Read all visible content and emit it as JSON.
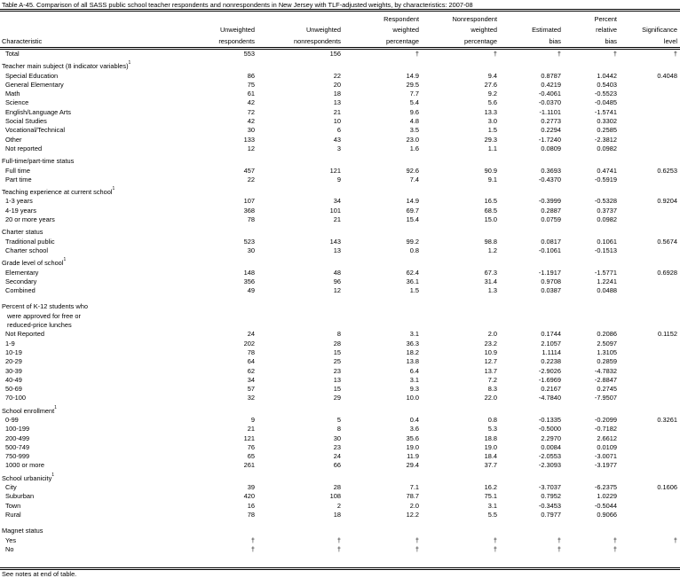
{
  "title": "Table A-45. Comparison of all SASS public school teacher respondents and nonrespondents in New Jersey with TLF-adjusted weights, by characteristics: 2007-08",
  "headers": {
    "characteristic": "Characteristic",
    "cols": [
      [
        "",
        "Unweighted",
        "respondents"
      ],
      [
        "",
        "Unweighted",
        "nonrespondents"
      ],
      [
        "Respondent",
        "weighted",
        "percentage"
      ],
      [
        "Nonrespondent",
        "weighted",
        "percentage"
      ],
      [
        "",
        "Estimated",
        "bias"
      ],
      [
        "Percent",
        "relative",
        "bias"
      ],
      [
        "",
        "Significance",
        "level"
      ]
    ]
  },
  "rows": [
    {
      "type": "data",
      "label": "Total",
      "values": [
        "553",
        "156",
        "†",
        "†",
        "†",
        "†",
        "†"
      ]
    },
    {
      "type": "group",
      "label": "Teacher main subject (8 indicator variables)",
      "sup": "1"
    },
    {
      "type": "data",
      "label": "Special Education",
      "values": [
        "86",
        "22",
        "14.9",
        "9.4",
        "0.8787",
        "1.0442",
        "0.4048"
      ]
    },
    {
      "type": "data",
      "label": "General Elementary",
      "values": [
        "75",
        "20",
        "29.5",
        "27.6",
        "0.4219",
        "0.5403",
        ""
      ]
    },
    {
      "type": "data",
      "label": "Math",
      "values": [
        "61",
        "18",
        "7.7",
        "9.2",
        "-0.4061",
        "-0.5523",
        ""
      ]
    },
    {
      "type": "data",
      "label": "Science",
      "values": [
        "42",
        "13",
        "5.4",
        "5.6",
        "-0.0370",
        "-0.0485",
        ""
      ]
    },
    {
      "type": "data",
      "label": "English/Language Arts",
      "values": [
        "72",
        "21",
        "9.6",
        "13.3",
        "-1.1101",
        "-1.5741",
        ""
      ]
    },
    {
      "type": "data",
      "label": "Social Studies",
      "values": [
        "42",
        "10",
        "4.8",
        "3.0",
        "0.2773",
        "0.3302",
        ""
      ]
    },
    {
      "type": "data",
      "label": "Vocational/Technical",
      "values": [
        "30",
        "6",
        "3.5",
        "1.5",
        "0.2294",
        "0.2585",
        ""
      ]
    },
    {
      "type": "data",
      "label": "Other",
      "values": [
        "133",
        "43",
        "23.0",
        "29.3",
        "-1.7240",
        "-2.3812",
        ""
      ]
    },
    {
      "type": "data",
      "label": "Not reported",
      "values": [
        "12",
        "3",
        "1.6",
        "1.1",
        "0.0809",
        "0.0982",
        ""
      ]
    },
    {
      "type": "group",
      "label": "Full-time/part-time status"
    },
    {
      "type": "data",
      "label": "Full time",
      "values": [
        "457",
        "121",
        "92.6",
        "90.9",
        "0.3693",
        "0.4741",
        "0.6253"
      ]
    },
    {
      "type": "data",
      "label": "Part time",
      "values": [
        "22",
        "9",
        "7.4",
        "9.1",
        "-0.4370",
        "-0.5919",
        ""
      ]
    },
    {
      "type": "group",
      "label": "Teaching experience at current school",
      "sup": "1"
    },
    {
      "type": "data",
      "label": "1-3 years",
      "values": [
        "107",
        "34",
        "14.9",
        "16.5",
        "-0.3999",
        "-0.5328",
        "0.9204"
      ]
    },
    {
      "type": "data",
      "label": "4-19 years",
      "values": [
        "368",
        "101",
        "69.7",
        "68.5",
        "0.2887",
        "0.3737",
        ""
      ]
    },
    {
      "type": "data",
      "label": "20 or more years",
      "values": [
        "78",
        "21",
        "15.4",
        "15.0",
        "0.0759",
        "0.0982",
        ""
      ]
    },
    {
      "type": "group",
      "label": "Charter status"
    },
    {
      "type": "data",
      "label": "Traditional public",
      "values": [
        "523",
        "143",
        "99.2",
        "98.8",
        "0.0817",
        "0.1061",
        "0.5674"
      ]
    },
    {
      "type": "data",
      "label": "Charter school",
      "values": [
        "30",
        "13",
        "0.8",
        "1.2",
        "-0.1061",
        "-0.1513",
        ""
      ]
    },
    {
      "type": "group",
      "label": "Grade level of school",
      "sup": "1"
    },
    {
      "type": "data",
      "label": "Elementary",
      "values": [
        "148",
        "48",
        "62.4",
        "67.3",
        "-1.1917",
        "-1.5771",
        "0.6928"
      ]
    },
    {
      "type": "data",
      "label": "Secondary",
      "values": [
        "356",
        "96",
        "36.1",
        "31.4",
        "0.9708",
        "1.2241",
        ""
      ]
    },
    {
      "type": "data",
      "label": "Combined",
      "values": [
        "49",
        "12",
        "1.5",
        "1.3",
        "0.0387",
        "0.0488",
        ""
      ]
    },
    {
      "type": "blank"
    },
    {
      "type": "group",
      "label": "Percent of K-12 students who"
    },
    {
      "type": "cont",
      "label": "were approved for free or"
    },
    {
      "type": "cont",
      "label": "reduced-price lunches"
    },
    {
      "type": "data",
      "label": "Not Reported",
      "values": [
        "24",
        "8",
        "3.1",
        "2.0",
        "0.1744",
        "0.2086",
        "0.1152"
      ]
    },
    {
      "type": "data",
      "label": "1-9",
      "values": [
        "202",
        "28",
        "36.3",
        "23.2",
        "2.1057",
        "2.5097",
        ""
      ]
    },
    {
      "type": "data",
      "label": "10-19",
      "values": [
        "78",
        "15",
        "18.2",
        "10.9",
        "1.1114",
        "1.3105",
        ""
      ]
    },
    {
      "type": "data",
      "label": "20-29",
      "values": [
        "64",
        "25",
        "13.8",
        "12.7",
        "0.2238",
        "0.2859",
        ""
      ]
    },
    {
      "type": "data",
      "label": "30-39",
      "values": [
        "62",
        "23",
        "6.4",
        "13.7",
        "-2.9026",
        "-4.7832",
        ""
      ]
    },
    {
      "type": "data",
      "label": "40-49",
      "values": [
        "34",
        "13",
        "3.1",
        "7.2",
        "-1.6969",
        "-2.8847",
        ""
      ]
    },
    {
      "type": "data",
      "label": "50-69",
      "values": [
        "57",
        "15",
        "9.3",
        "8.3",
        "0.2167",
        "0.2745",
        ""
      ]
    },
    {
      "type": "data",
      "label": "70-100",
      "values": [
        "32",
        "29",
        "10.0",
        "22.0",
        "-4.7840",
        "-7.9507",
        ""
      ]
    },
    {
      "type": "group",
      "label": "School enrollment",
      "sup": "1"
    },
    {
      "type": "data",
      "label": "0-99",
      "values": [
        "9",
        "5",
        "0.4",
        "0.8",
        "-0.1335",
        "-0.2099",
        "0.3261"
      ]
    },
    {
      "type": "data",
      "label": "100-199",
      "values": [
        "21",
        "8",
        "3.6",
        "5.3",
        "-0.5000",
        "-0.7182",
        ""
      ]
    },
    {
      "type": "data",
      "label": "200-499",
      "values": [
        "121",
        "30",
        "35.6",
        "18.8",
        "2.2970",
        "2.6612",
        ""
      ]
    },
    {
      "type": "data",
      "label": "500-749",
      "values": [
        "76",
        "23",
        "19.0",
        "19.0",
        "0.0084",
        "0.0109",
        ""
      ]
    },
    {
      "type": "data",
      "label": "750-999",
      "values": [
        "65",
        "24",
        "11.9",
        "18.4",
        "-2.0553",
        "-3.0071",
        ""
      ]
    },
    {
      "type": "data",
      "label": "1000 or more",
      "values": [
        "261",
        "66",
        "29.4",
        "37.7",
        "-2.3093",
        "-3.1977",
        ""
      ]
    },
    {
      "type": "group",
      "label": "School urbanicity",
      "sup": "1"
    },
    {
      "type": "data",
      "label": "City",
      "values": [
        "39",
        "28",
        "7.1",
        "16.2",
        "-3.7037",
        "-6.2375",
        "0.1606"
      ]
    },
    {
      "type": "data",
      "label": "Suburban",
      "values": [
        "420",
        "108",
        "78.7",
        "75.1",
        "0.7952",
        "1.0229",
        ""
      ]
    },
    {
      "type": "data",
      "label": "Town",
      "values": [
        "16",
        "2",
        "2.0",
        "3.1",
        "-0.3453",
        "-0.5044",
        ""
      ]
    },
    {
      "type": "data",
      "label": "Rural",
      "values": [
        "78",
        "18",
        "12.2",
        "5.5",
        "0.7977",
        "0.9066",
        ""
      ]
    },
    {
      "type": "blank"
    },
    {
      "type": "group",
      "label": "Magnet status"
    },
    {
      "type": "data",
      "label": "Yes",
      "values": [
        "†",
        "†",
        "†",
        "†",
        "†",
        "†",
        "†"
      ]
    },
    {
      "type": "data",
      "label": "No",
      "values": [
        "†",
        "†",
        "†",
        "†",
        "†",
        "†",
        ""
      ]
    }
  ],
  "footnote": "See notes at end of table."
}
